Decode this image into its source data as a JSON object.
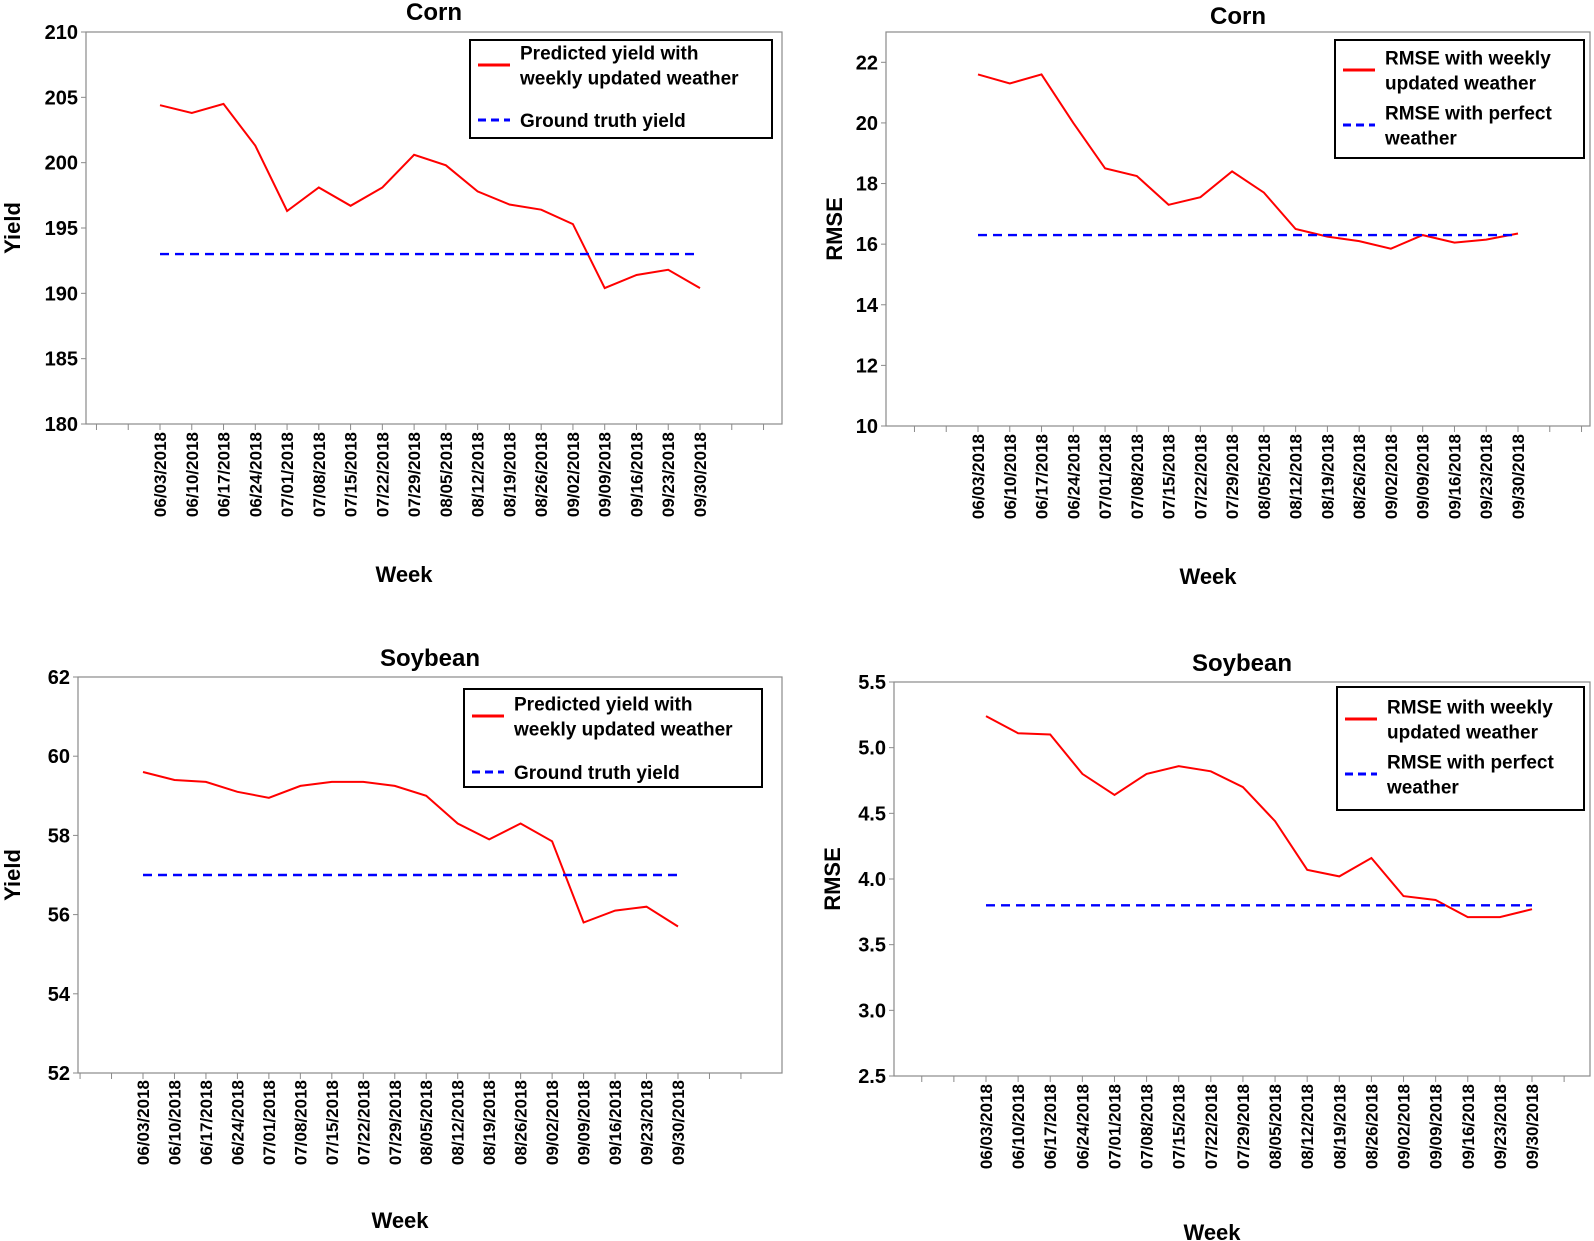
{
  "chart_data": [
    {
      "type": "line",
      "title": "Corn",
      "xlabel": "Week",
      "ylabel": "Yield",
      "ylim": [
        180,
        210
      ],
      "yticks": [
        "180",
        "185",
        "190",
        "195",
        "200",
        "205",
        "210"
      ],
      "categories": [
        "06/03/2018",
        "06/10/2018",
        "06/17/2018",
        "06/24/2018",
        "07/01/2018",
        "07/08/2018",
        "07/15/2018",
        "07/22/2018",
        "07/29/2018",
        "08/05/2018",
        "08/12/2018",
        "08/19/2018",
        "08/26/2018",
        "09/02/2018",
        "09/09/2018",
        "09/16/2018",
        "09/23/2018",
        "09/30/2018"
      ],
      "series": [
        {
          "name_lines": [
            "Predicted yield with",
            "weekly updated weather"
          ],
          "style": "solid",
          "color": "#ff0000",
          "values": [
            204.4,
            203.8,
            204.5,
            201.3,
            196.3,
            198.1,
            196.7,
            198.1,
            200.6,
            199.8,
            197.8,
            196.8,
            196.4,
            195.3,
            190.4,
            191.4,
            191.8,
            190.4
          ]
        },
        {
          "name_lines": [
            "Ground truth yield"
          ],
          "style": "dashed",
          "color": "#0000ff",
          "values": [
            193,
            193,
            193,
            193,
            193,
            193,
            193,
            193,
            193,
            193,
            193,
            193,
            193,
            193,
            193,
            193,
            193,
            193
          ]
        }
      ],
      "legend": "top-right"
    },
    {
      "type": "line",
      "title": "Corn",
      "xlabel": "Week",
      "ylabel": "RMSE",
      "ylim": [
        10,
        23
      ],
      "yticks": [
        "10",
        "12",
        "14",
        "16",
        "18",
        "20",
        "22"
      ],
      "categories": [
        "06/03/2018",
        "06/10/2018",
        "06/17/2018",
        "06/24/2018",
        "07/01/2018",
        "07/08/2018",
        "07/15/2018",
        "07/22/2018",
        "07/29/2018",
        "08/05/2018",
        "08/12/2018",
        "08/19/2018",
        "08/26/2018",
        "09/02/2018",
        "09/09/2018",
        "09/16/2018",
        "09/23/2018",
        "09/30/2018"
      ],
      "series": [
        {
          "name_lines": [
            "RMSE with weekly",
            "updated weather"
          ],
          "style": "solid",
          "color": "#ff0000",
          "values": [
            21.6,
            21.3,
            21.6,
            20.0,
            18.5,
            18.25,
            17.3,
            17.55,
            18.4,
            17.7,
            16.5,
            16.25,
            16.1,
            15.85,
            16.3,
            16.05,
            16.15,
            16.35
          ]
        },
        {
          "name_lines": [
            "RMSE with perfect",
            "weather"
          ],
          "style": "dashed",
          "color": "#0000ff",
          "values": [
            16.3,
            16.3,
            16.3,
            16.3,
            16.3,
            16.3,
            16.3,
            16.3,
            16.3,
            16.3,
            16.3,
            16.3,
            16.3,
            16.3,
            16.3,
            16.3,
            16.3,
            16.3
          ]
        }
      ],
      "legend": "top-right"
    },
    {
      "type": "line",
      "title": "Soybean",
      "xlabel": "Week",
      "ylabel": "Yield",
      "ylim": [
        52,
        62
      ],
      "yticks": [
        "52",
        "54",
        "56",
        "58",
        "60",
        "62"
      ],
      "categories": [
        "06/03/2018",
        "06/10/2018",
        "06/17/2018",
        "06/24/2018",
        "07/01/2018",
        "07/08/2018",
        "07/15/2018",
        "07/22/2018",
        "07/29/2018",
        "08/05/2018",
        "08/12/2018",
        "08/19/2018",
        "08/26/2018",
        "09/02/2018",
        "09/09/2018",
        "09/16/2018",
        "09/23/2018",
        "09/30/2018"
      ],
      "series": [
        {
          "name_lines": [
            "Predicted yield with",
            "weekly updated weather"
          ],
          "style": "solid",
          "color": "#ff0000",
          "values": [
            59.6,
            59.4,
            59.35,
            59.1,
            58.95,
            59.25,
            59.35,
            59.35,
            59.25,
            59.0,
            58.3,
            57.9,
            58.3,
            57.85,
            55.8,
            56.1,
            56.2,
            55.7
          ]
        },
        {
          "name_lines": [
            "Ground truth yield"
          ],
          "style": "dashed",
          "color": "#0000ff",
          "values": [
            57,
            57,
            57,
            57,
            57,
            57,
            57,
            57,
            57,
            57,
            57,
            57,
            57,
            57,
            57,
            57,
            57,
            57
          ]
        }
      ],
      "legend": "top-right"
    },
    {
      "type": "line",
      "title": "Soybean",
      "xlabel": "Week",
      "ylabel": "RMSE",
      "ylim": [
        2.5,
        5.5
      ],
      "yticks": [
        "2.5",
        "3.0",
        "3.5",
        "4.0",
        "4.5",
        "5.0",
        "5.5"
      ],
      "categories": [
        "06/03/2018",
        "06/10/2018",
        "06/17/2018",
        "06/24/2018",
        "07/01/2018",
        "07/08/2018",
        "07/15/2018",
        "07/22/2018",
        "07/29/2018",
        "08/05/2018",
        "08/12/2018",
        "08/19/2018",
        "08/26/2018",
        "09/02/2018",
        "09/09/2018",
        "09/16/2018",
        "09/23/2018",
        "09/30/2018"
      ],
      "series": [
        {
          "name_lines": [
            "RMSE with weekly",
            "updated weather"
          ],
          "style": "solid",
          "color": "#ff0000",
          "values": [
            5.24,
            5.11,
            5.1,
            4.8,
            4.64,
            4.8,
            4.86,
            4.82,
            4.7,
            4.44,
            4.07,
            4.02,
            4.16,
            3.87,
            3.84,
            3.71,
            3.71,
            3.77
          ]
        },
        {
          "name_lines": [
            "RMSE with perfect",
            "weather"
          ],
          "style": "dashed",
          "color": "#0000ff",
          "values": [
            3.8,
            3.8,
            3.8,
            3.8,
            3.8,
            3.8,
            3.8,
            3.8,
            3.8,
            3.8,
            3.8,
            3.8,
            3.8,
            3.8,
            3.8,
            3.8,
            3.8,
            3.8
          ]
        }
      ],
      "legend": "top-right"
    }
  ]
}
